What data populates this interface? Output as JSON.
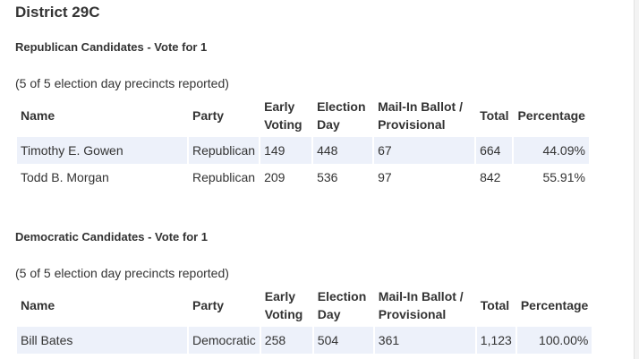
{
  "district": {
    "title": "District 29C"
  },
  "columns": {
    "name": "Name",
    "party": "Party",
    "early_line1": "Early",
    "early_line2": "Voting",
    "eday_line1": "Election",
    "eday_line2": "Day",
    "mail_line1": "Mail-In Ballot /",
    "mail_line2": "Provisional",
    "total": "Total",
    "percentage": "Percentage"
  },
  "races": [
    {
      "title": "Republican Candidates - Vote for 1",
      "precincts": "(5 of 5 election day precincts reported)",
      "candidates": [
        {
          "name": "Timothy E. Gowen",
          "party": "Republican",
          "early": "149",
          "eday": "448",
          "mail": "67",
          "total": "664",
          "percentage": "44.09%"
        },
        {
          "name": "Todd B. Morgan",
          "party": "Republican",
          "early": "209",
          "eday": "536",
          "mail": "97",
          "total": "842",
          "percentage": "55.91%"
        }
      ]
    },
    {
      "title": "Democratic Candidates - Vote for 1",
      "precincts": "(5 of 5 election day precincts reported)",
      "candidates": [
        {
          "name": "Bill Bates",
          "party": "Democratic",
          "early": "258",
          "eday": "504",
          "mail": "361",
          "total": "1,123",
          "percentage": "100.00%"
        }
      ]
    }
  ],
  "colors": {
    "row_stripe": "#edf1fa",
    "text": "#333333"
  }
}
